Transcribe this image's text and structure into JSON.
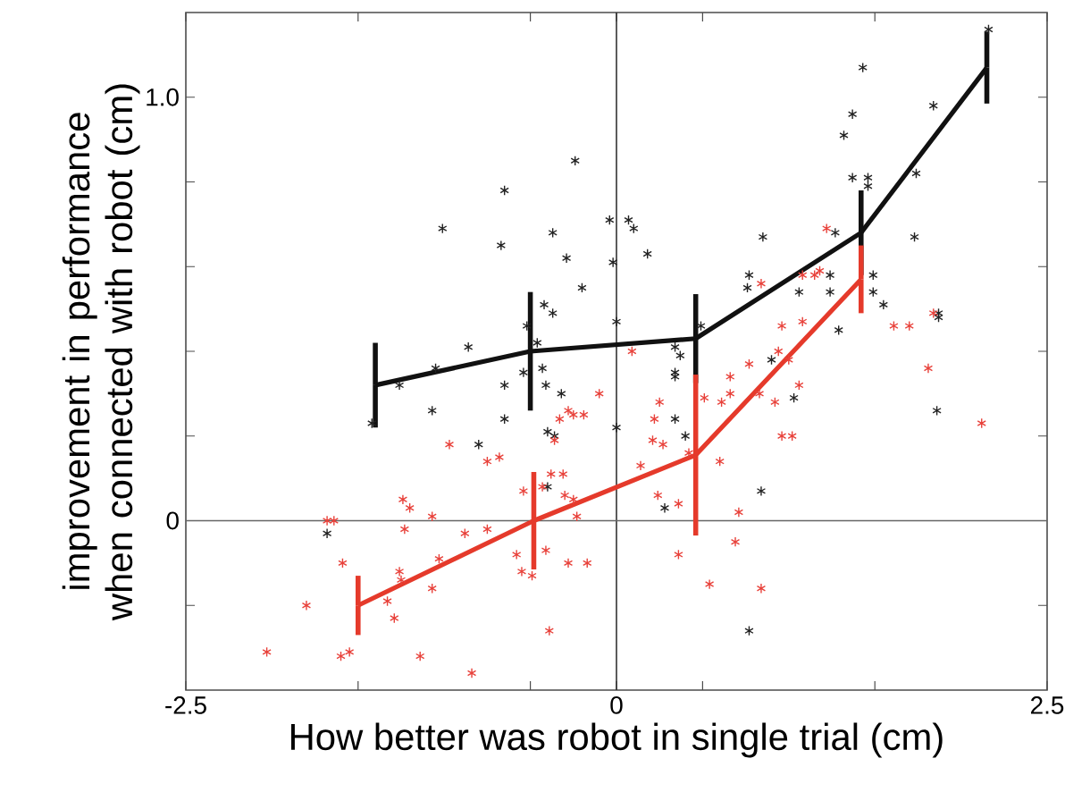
{
  "chart_data": {
    "type": "scatter",
    "xlabel": "How better was robot in single trial  (cm)",
    "ylabel": "improvement in performance when connected with robot (cm)",
    "xlim": [
      -2.5,
      2.5
    ],
    "ylim": [
      -0.4,
      1.2
    ],
    "xticks": [
      -2.5,
      {
        "value": -1.5,
        "label": null
      },
      {
        "value": -0.5,
        "label": null
      },
      0,
      {
        "value": 0.5,
        "label": null
      },
      {
        "value": 1.5,
        "label": null
      },
      2.5
    ],
    "yticks": [
      {
        "value": -0.2,
        "label": null
      },
      0,
      {
        "value": 0.2,
        "label": null
      },
      {
        "value": 0.4,
        "label": null
      },
      {
        "value": 0.6,
        "label": null
      },
      {
        "value": 0.8,
        "label": null
      },
      {
        "value": 1.0,
        "label": "1.0"
      }
    ],
    "ref_lines": [
      {
        "axis": "x",
        "value": 0,
        "color": "#333333"
      },
      {
        "axis": "y",
        "value": 0,
        "color": "#666666"
      }
    ],
    "series": [
      {
        "type": "scatter",
        "marker": "cross",
        "color": "#222222",
        "x": [
          -0.24,
          -0.65,
          -1.01,
          -0.67,
          -0.37,
          -0.29,
          -0.2,
          -0.04,
          -0.02,
          -0.42,
          -0.37,
          -0.52,
          -0.86,
          0.0,
          -0.46,
          0.07,
          0.1,
          0.18,
          0.85,
          0.77,
          0.76,
          1.06,
          1.24,
          1.24,
          1.29,
          1.27,
          1.37,
          1.46,
          1.46,
          1.32,
          1.37,
          1.43,
          1.84,
          1.74,
          1.73,
          1.49,
          1.49,
          1.55,
          1.87,
          1.87,
          2.16,
          0.49,
          0.34,
          0.37,
          -1.05,
          -1.26,
          -1.42,
          -1.07,
          -0.8,
          -0.65,
          -0.65,
          -0.54,
          -0.43,
          -0.41,
          -0.32,
          -0.4,
          -0.36,
          -0.4,
          -1.68,
          0.0,
          0.34,
          0.34,
          0.9,
          1.03,
          0.34,
          0.4,
          0.28,
          0.84,
          1.86,
          0.77
        ],
        "values": [
          0.85,
          0.78,
          0.69,
          0.65,
          0.68,
          0.62,
          0.55,
          0.71,
          0.61,
          0.51,
          0.49,
          0.46,
          0.41,
          0.47,
          0.42,
          0.71,
          0.69,
          0.63,
          0.67,
          0.58,
          0.55,
          0.54,
          0.58,
          0.54,
          0.45,
          0.68,
          0.81,
          0.81,
          0.79,
          0.91,
          0.96,
          1.07,
          0.98,
          0.82,
          0.67,
          0.58,
          0.54,
          0.51,
          0.49,
          0.48,
          1.16,
          0.46,
          0.41,
          0.39,
          0.36,
          0.32,
          0.23,
          0.26,
          0.18,
          0.32,
          0.24,
          0.35,
          0.36,
          0.32,
          0.3,
          0.21,
          0.2,
          0.08,
          -0.03,
          0.22,
          0.35,
          0.34,
          0.38,
          0.29,
          0.24,
          0.2,
          0.03,
          0.07,
          0.26,
          -0.26
        ]
      },
      {
        "type": "scatter",
        "marker": "cross",
        "color": "#e8413a",
        "x": [
          -0.1,
          -0.28,
          -0.25,
          -0.33,
          -0.19,
          -0.36,
          -0.97,
          -0.75,
          -0.68,
          -0.31,
          -0.38,
          -0.54,
          -0.3,
          -0.25,
          -0.23,
          -0.43,
          -1.24,
          -1.2,
          -1.07,
          -1.68,
          -1.64,
          -1.23,
          -0.75,
          -0.88,
          -0.41,
          -0.58,
          -1.03,
          -1.59,
          -0.28,
          -0.17,
          -1.26,
          -1.25,
          -0.55,
          -0.49,
          -1.07,
          -1.33,
          -1.8,
          -1.29,
          -0.39,
          -2.03,
          -1.6,
          -1.55,
          -1.14,
          -0.84,
          0.09,
          0.77,
          0.94,
          1.0,
          0.66,
          1.06,
          0.66,
          0.51,
          0.61,
          0.92,
          0.83,
          0.25,
          0.22,
          0.21,
          0.27,
          0.96,
          1.02,
          0.14,
          0.6,
          0.42,
          0.24,
          0.36,
          0.71,
          0.69,
          0.36,
          0.54,
          0.84,
          1.81,
          2.12,
          1.22,
          0.84,
          0.96,
          1.08,
          1.08,
          1.15,
          1.18,
          1.61,
          1.7,
          1.84
        ],
        "values": [
          0.3,
          0.26,
          0.25,
          0.24,
          0.25,
          0.19,
          0.18,
          0.14,
          0.15,
          0.11,
          0.11,
          0.07,
          0.06,
          0.05,
          0.01,
          0.08,
          0.05,
          0.03,
          0.01,
          0.0,
          0.0,
          -0.02,
          -0.02,
          -0.03,
          -0.07,
          -0.08,
          -0.09,
          -0.1,
          -0.1,
          -0.1,
          -0.12,
          -0.14,
          -0.12,
          -0.13,
          -0.16,
          -0.19,
          -0.2,
          -0.23,
          -0.26,
          -0.31,
          -0.32,
          -0.31,
          -0.32,
          -0.36,
          0.4,
          0.37,
          0.4,
          0.38,
          0.34,
          0.32,
          0.3,
          0.29,
          0.28,
          0.28,
          0.3,
          0.28,
          0.24,
          0.19,
          0.18,
          0.2,
          0.2,
          0.13,
          0.14,
          0.16,
          0.06,
          0.04,
          0.02,
          -0.05,
          -0.08,
          -0.15,
          -0.16,
          0.36,
          0.23,
          0.69,
          0.56,
          0.46,
          0.47,
          0.58,
          0.58,
          0.59,
          0.46,
          0.46,
          0.49
        ]
      },
      {
        "type": "line",
        "marker": "none",
        "color": "#111111",
        "x": [
          -1.4,
          -0.5,
          0.46,
          1.42,
          2.15
        ],
        "values": [
          0.32,
          0.4,
          0.43,
          0.68,
          1.07
        ],
        "errors": [
          0.1,
          0.14,
          0.105,
          0.1,
          0.085
        ]
      },
      {
        "type": "line",
        "marker": "none",
        "color": "#e53a2b",
        "x": [
          -1.5,
          -0.48,
          0.46,
          1.42
        ],
        "values": [
          -0.2,
          0.0,
          0.155,
          0.57
        ],
        "errors": [
          0.07,
          0.115,
          0.19,
          0.08
        ]
      }
    ]
  }
}
